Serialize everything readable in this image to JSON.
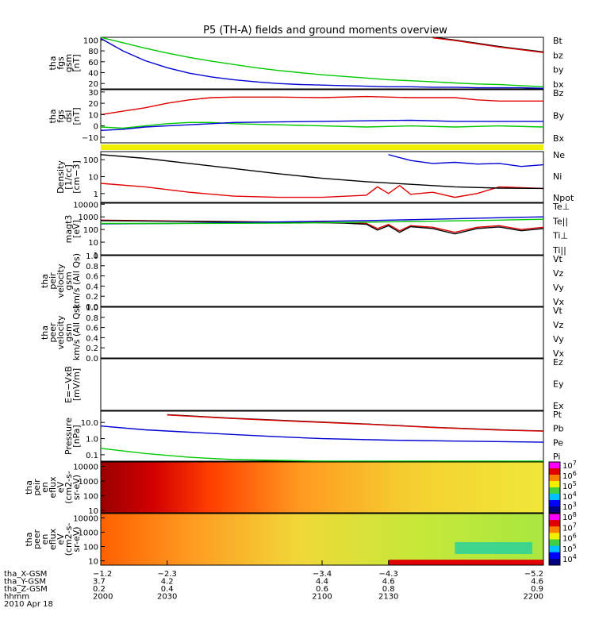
{
  "title": "P5 (TH-A) fields and ground moments overview",
  "colors": {
    "black": "#000000",
    "red": "#e00000",
    "green": "#00c800",
    "blue": "#0000d2",
    "yellow": "#f0f000"
  },
  "chart_data": [
    {
      "type": "line",
      "id": "p1",
      "ylabel": [
        "tha",
        "fgs",
        "gsm",
        "[nT]"
      ],
      "ylim": [
        10,
        105
      ],
      "yticks": [
        20,
        40,
        60,
        80,
        100
      ],
      "tick_labels": [
        "20",
        "40",
        "60",
        "80",
        "100"
      ],
      "series": [
        {
          "name": "Bt",
          "color": "black",
          "x": [
            2150,
            2160,
            2170,
            2180,
            2190,
            2200
          ],
          "y": [
            105,
            100,
            94,
            88,
            83,
            78
          ]
        },
        {
          "name": "bz",
          "color": "red",
          "x": [
            2150,
            2160,
            2170,
            2180,
            2190,
            2200
          ],
          "y": [
            104,
            99,
            93,
            87,
            82,
            77
          ]
        },
        {
          "name": "by",
          "color": "green",
          "x": [
            2000,
            2010,
            2020,
            2030,
            2040,
            2050,
            2060,
            2070,
            2080,
            2090,
            2100,
            2110,
            2120,
            2130,
            2140,
            2150,
            2160,
            2170,
            2180,
            2190,
            2200
          ],
          "y": [
            105,
            95,
            85,
            76,
            68,
            61,
            55,
            49,
            44,
            40,
            36,
            33,
            30,
            27,
            25,
            23,
            21,
            19,
            18,
            16,
            14
          ]
        },
        {
          "name": "bx",
          "color": "blue",
          "x": [
            2000,
            2010,
            2020,
            2030,
            2040,
            2050,
            2060,
            2070,
            2080,
            2090,
            2100,
            2110,
            2120,
            2130,
            2140,
            2150,
            2160,
            2170,
            2180,
            2190,
            2200
          ],
          "y": [
            103,
            80,
            62,
            49,
            39,
            32,
            27,
            23,
            20,
            18,
            17,
            16,
            15,
            14,
            14,
            13,
            13,
            12,
            12,
            12,
            11
          ]
        }
      ]
    },
    {
      "type": "line",
      "id": "p2",
      "ylabel": [
        "tha",
        "fgs",
        "dsl",
        "[nT]"
      ],
      "ylim": [
        -15,
        32
      ],
      "yticks": [
        -10,
        0,
        10,
        20,
        30
      ],
      "tick_labels": [
        "−10",
        "0",
        "10",
        "20",
        "30"
      ],
      "series": [
        {
          "name": "Bz",
          "color": "red",
          "x": [
            2000,
            2010,
            2020,
            2030,
            2040,
            2050,
            2060,
            2080,
            2100,
            2120,
            2140,
            2160,
            2170,
            2180,
            2200
          ],
          "y": [
            10,
            13,
            16,
            20,
            23,
            25,
            25.5,
            25.5,
            25,
            26,
            25,
            25,
            23,
            22,
            22
          ]
        },
        {
          "name": "By",
          "color": "green",
          "x": [
            2000,
            2010,
            2020,
            2030,
            2040,
            2050,
            2060,
            2080,
            2100,
            2120,
            2140,
            2160,
            2180,
            2200
          ],
          "y": [
            -1,
            -2,
            0,
            2,
            3,
            3,
            2,
            1,
            0,
            -1,
            0,
            -1,
            0,
            -1
          ]
        },
        {
          "name": "Bx",
          "color": "blue",
          "x": [
            2000,
            2010,
            2020,
            2030,
            2040,
            2050,
            2060,
            2080,
            2100,
            2120,
            2140,
            2160,
            2180,
            2200
          ],
          "y": [
            -4,
            -3,
            -1,
            0,
            1,
            2,
            3,
            3.5,
            4,
            4.5,
            5,
            4,
            4,
            4
          ]
        }
      ]
    },
    {
      "type": "line",
      "id": "p3",
      "ylabel": [
        "Density",
        "[1/cc]",
        "[cm−3]"
      ],
      "log": true,
      "ylim": [
        0.3,
        300
      ],
      "yticks": [
        1,
        10,
        100
      ],
      "tick_labels": [
        "1",
        "10",
        "100"
      ],
      "series": [
        {
          "name": "Ne",
          "color": "red",
          "x": [
            2000,
            2020,
            2040,
            2060,
            2080,
            2100,
            2120,
            2125,
            2130,
            2135,
            2140,
            2150,
            2160,
            2170,
            2180,
            2190,
            2200
          ],
          "y": [
            4,
            2.5,
            1.2,
            0.7,
            0.6,
            0.6,
            0.8,
            2.5,
            1,
            3,
            0.9,
            1.2,
            0.6,
            1,
            2.5,
            2.2,
            2
          ]
        },
        {
          "name": "Ni",
          "color": "black",
          "x": [
            2000,
            2020,
            2040,
            2060,
            2080,
            2100,
            2120,
            2140,
            2160,
            2180,
            2200
          ],
          "y": [
            200,
            120,
            60,
            30,
            15,
            8,
            5,
            3.5,
            2.5,
            2.1,
            2
          ]
        },
        {
          "name": "Npot",
          "color": "blue",
          "x": [
            2130,
            2140,
            2150,
            2160,
            2170,
            2180,
            2190,
            2200
          ],
          "y": [
            200,
            90,
            60,
            70,
            55,
            60,
            40,
            50
          ]
        }
      ]
    },
    {
      "type": "line",
      "id": "p4",
      "ylabel": [
        "magt3",
        "[eV]"
      ],
      "log": true,
      "ylim": [
        1,
        12000
      ],
      "yticks": [
        1,
        10,
        100,
        1000,
        10000
      ],
      "tick_labels": [
        "1",
        "10",
        "100",
        "1000",
        "10000"
      ],
      "series": [
        {
          "name": "Te⊥",
          "color": "red",
          "x": [
            2000,
            2030,
            2060,
            2090,
            2110,
            2120,
            2125,
            2130,
            2135,
            2140,
            2150,
            2160,
            2170,
            2180,
            2190,
            2200
          ],
          "y": [
            550,
            480,
            420,
            380,
            350,
            300,
            120,
            250,
            80,
            200,
            150,
            60,
            150,
            200,
            100,
            150
          ]
        },
        {
          "name": "Te||",
          "color": "black",
          "x": [
            2000,
            2030,
            2060,
            2090,
            2110,
            2120,
            2125,
            2130,
            2135,
            2140,
            2150,
            2160,
            2170,
            2180,
            2190,
            2200
          ],
          "y": [
            500,
            450,
            400,
            360,
            320,
            260,
            90,
            200,
            60,
            170,
            120,
            45,
            120,
            160,
            80,
            120
          ]
        },
        {
          "name": "Ti⊥",
          "color": "blue",
          "x": [
            2000,
            2030,
            2060,
            2090,
            2120,
            2150,
            2180,
            2200
          ],
          "y": [
            280,
            300,
            350,
            420,
            500,
            650,
            850,
            1000
          ]
        },
        {
          "name": "Ti||",
          "color": "green",
          "x": [
            2000,
            2030,
            2060,
            2090,
            2120,
            2150,
            2180,
            2200
          ],
          "y": [
            300,
            300,
            310,
            330,
            380,
            450,
            550,
            650
          ]
        }
      ]
    },
    {
      "type": "line",
      "id": "p5",
      "ylabel": [
        "tha",
        "peir",
        "velocity",
        "gsm",
        "km/s (All Qs)"
      ],
      "ylim": [
        0,
        1
      ],
      "yticks": [
        0,
        0.2,
        0.4,
        0.6,
        0.8,
        1
      ],
      "tick_labels": [
        "0.0",
        "0.2",
        "0.4",
        "0.6",
        "0.8",
        "1.0"
      ],
      "series": []
    },
    {
      "type": "line",
      "id": "p6",
      "ylabel": [
        "tha",
        "peer",
        "velocity",
        "gsm",
        "km/s (All Qs)"
      ],
      "ylim": [
        0,
        1
      ],
      "yticks": [
        0,
        0.2,
        0.4,
        0.6,
        0.8,
        1
      ],
      "tick_labels": [
        "0.0",
        "0.2",
        "0.4",
        "0.6",
        "0.8",
        "1.0"
      ],
      "series": []
    },
    {
      "type": "line",
      "id": "p7",
      "ylabel": [
        "E=−VxB",
        "[mV/m]"
      ],
      "ylim": [
        0,
        1
      ],
      "yticks": [],
      "tick_labels": [],
      "series": []
    },
    {
      "type": "line",
      "id": "p8",
      "ylabel": [
        "Pressure",
        "[nPa]"
      ],
      "log": true,
      "ylim": [
        0.04,
        50
      ],
      "yticks": [
        0.1,
        1,
        10
      ],
      "tick_labels": [
        "0.1",
        "1.0",
        "10.0"
      ],
      "series": [
        {
          "name": "Pt",
          "color": "black",
          "x": [
            2030,
            2060,
            2090,
            2120,
            2150,
            2180,
            2200
          ],
          "y": [
            30,
            18,
            12,
            8,
            5,
            3.5,
            3
          ]
        },
        {
          "name": "Pb",
          "color": "red",
          "x": [
            2030,
            2060,
            2090,
            2120,
            2150,
            2180,
            2200
          ],
          "y": [
            29,
            17.5,
            11.5,
            7.8,
            4.9,
            3.4,
            2.9
          ]
        },
        {
          "name": "Pe",
          "color": "green",
          "x": [
            2000,
            2020,
            2040,
            2060,
            2080,
            2100,
            2130,
            2160,
            2200
          ],
          "y": [
            0.25,
            0.12,
            0.07,
            0.05,
            0.045,
            0.04,
            0.04,
            0.04,
            0.04
          ]
        },
        {
          "name": "Pi",
          "color": "blue",
          "x": [
            2000,
            2020,
            2040,
            2060,
            2080,
            2100,
            2130,
            2160,
            2200
          ],
          "y": [
            6,
            3.5,
            2.5,
            1.8,
            1.3,
            1,
            0.8,
            0.7,
            0.6
          ]
        }
      ]
    },
    {
      "type": "heatmap",
      "id": "p9",
      "ylabel": [
        "tha",
        "peir",
        "en",
        "eflux",
        "eV",
        "(cm2-s-",
        "sr-eV)"
      ],
      "log": true,
      "ylim": [
        7,
        20000
      ],
      "yticks": [
        10,
        100,
        1000,
        10000
      ],
      "tick_labels": [
        "10",
        "100",
        "1000",
        "10000"
      ],
      "colorbar_exponents": [
        "7",
        "6",
        "5",
        "4",
        "3"
      ]
    },
    {
      "type": "heatmap",
      "id": "p10",
      "ylabel": [
        "tha",
        "peer",
        "en",
        "eflux",
        "eV",
        "(cm2-s-",
        "sr-eV)"
      ],
      "log": true,
      "ylim": [
        5,
        20000
      ],
      "yticks": [
        10,
        100,
        1000,
        10000
      ],
      "tick_labels": [
        "10",
        "100",
        "1000",
        "10000"
      ],
      "colorbar_exponents": [
        "8",
        "7",
        "6",
        "5",
        "4"
      ]
    }
  ],
  "legends": [
    [
      "Bt",
      "bz",
      "by",
      "bx"
    ],
    [
      "Bz",
      "By",
      "Bx"
    ],
    [
      "Ne",
      "Ni",
      "Npot"
    ],
    [
      "Te⊥",
      "Te||",
      "Ti⊥",
      "Ti||"
    ],
    [
      "Vt",
      "Vz",
      "Vy",
      "Vx"
    ],
    [
      "Vt",
      "Vz",
      "Vy",
      "Vx"
    ],
    [
      "Ez",
      "Ey",
      "Ex"
    ],
    [
      "Pt",
      "Pb",
      "Pe",
      "Pi"
    ]
  ],
  "legend_colors": [
    [
      "black",
      "red",
      "green",
      "blue"
    ],
    [
      "red",
      "green",
      "blue"
    ],
    [
      "red",
      "black",
      "blue"
    ],
    [
      "red",
      "black",
      "blue",
      "green"
    ],
    [
      "black",
      "red",
      "green",
      "blue"
    ],
    [
      "black",
      "red",
      "green",
      "blue"
    ],
    [
      "red",
      "green",
      "blue"
    ],
    [
      "black",
      "red",
      "green",
      "blue"
    ]
  ],
  "x_axis": {
    "xlim": [
      2000,
      2200
    ],
    "tick_x": [
      2000,
      2030,
      2100,
      2130,
      2200
    ],
    "rows": [
      {
        "label": "tha_X-GSM",
        "values": [
          "−1.2",
          "−2.3",
          "−3.4",
          "−4.3",
          "−5.2"
        ]
      },
      {
        "label": "tha_Y-GSM",
        "values": [
          "3.7",
          "4.2",
          "4.4",
          "4.6",
          "4.6"
        ]
      },
      {
        "label": "tha_Z-GSM",
        "values": [
          "0.2",
          "0.4",
          "0.6",
          "0.8",
          "0.9"
        ]
      },
      {
        "label": "hhmm",
        "values": [
          "2000",
          "2030",
          "2100",
          "2130",
          "2200"
        ]
      }
    ],
    "date": "2010 Apr 18"
  }
}
